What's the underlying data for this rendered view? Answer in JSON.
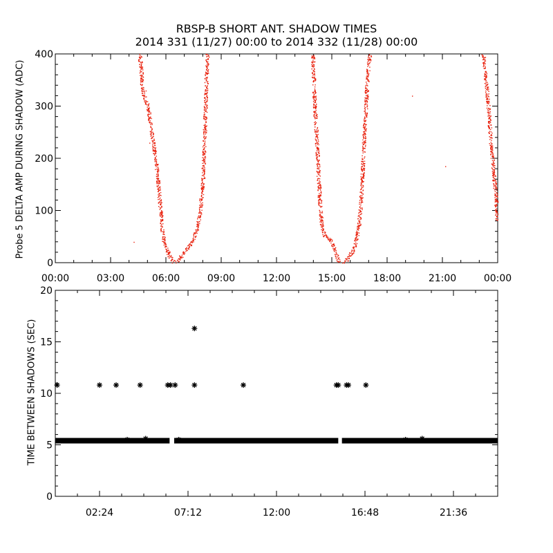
{
  "title": "RBSP-B SHORT ANT. SHADOW TIMES",
  "subtitle": "2014 331 (11/27) 00:00 to 2014 332 (11/28) 00:00",
  "colors": {
    "top_points": "#e8200c",
    "bottom_points": "#000000",
    "axes": "#000000"
  },
  "chart_data": [
    {
      "type": "scatter",
      "title": "RBSP-B SHORT ANT. SHADOW TIMES",
      "ylabel": "Probe 5 DELTA AMP DURING SHADOW (ADC)",
      "xlabel": "",
      "xlim_hours": [
        0,
        24
      ],
      "ylim": [
        0,
        400
      ],
      "xticks": [
        "00:00",
        "03:00",
        "06:00",
        "09:00",
        "12:00",
        "15:00",
        "18:00",
        "21:00",
        "00:00"
      ],
      "yticks": [
        "0",
        "100",
        "200",
        "300",
        "400"
      ],
      "point_color": "#e8200c",
      "segments": [
        {
          "name": "pass1-inbound",
          "points": [
            [
              4.55,
              400
            ],
            [
              4.65,
              370
            ],
            [
              4.7,
              330
            ],
            [
              5.0,
              300
            ],
            [
              5.3,
              230
            ],
            [
              5.5,
              180
            ],
            [
              5.7,
              100
            ],
            [
              5.8,
              60
            ],
            [
              5.9,
              40
            ],
            [
              6.1,
              20
            ],
            [
              6.3,
              5
            ],
            [
              6.45,
              1
            ]
          ]
        },
        {
          "name": "pass1-outbound",
          "points": [
            [
              6.55,
              2
            ],
            [
              6.8,
              12
            ],
            [
              7.0,
              22
            ],
            [
              7.3,
              35
            ],
            [
              7.5,
              50
            ],
            [
              7.65,
              65
            ],
            [
              7.8,
              90
            ],
            [
              7.9,
              120
            ],
            [
              8.0,
              160
            ],
            [
              8.05,
              200
            ],
            [
              8.1,
              260
            ],
            [
              8.15,
              320
            ],
            [
              8.2,
              370
            ],
            [
              8.25,
              400
            ]
          ]
        },
        {
          "name": "pass2-inbound",
          "points": [
            [
              13.95,
              400
            ],
            [
              14.0,
              360
            ],
            [
              14.05,
              310
            ],
            [
              14.15,
              250
            ],
            [
              14.25,
              180
            ],
            [
              14.35,
              110
            ],
            [
              14.45,
              70
            ],
            [
              14.6,
              52
            ],
            [
              14.9,
              45
            ],
            [
              15.1,
              30
            ],
            [
              15.3,
              8
            ],
            [
              15.4,
              1
            ]
          ]
        },
        {
          "name": "pass2-outbound",
          "points": [
            [
              15.6,
              1
            ],
            [
              15.8,
              6
            ],
            [
              16.0,
              15
            ],
            [
              16.2,
              30
            ],
            [
              16.35,
              50
            ],
            [
              16.45,
              70
            ],
            [
              16.55,
              110
            ],
            [
              16.65,
              170
            ],
            [
              16.75,
              250
            ],
            [
              16.85,
              310
            ],
            [
              16.95,
              370
            ],
            [
              17.05,
              400
            ]
          ]
        },
        {
          "name": "pass3-inbound",
          "points": [
            [
              23.2,
              400
            ],
            [
              23.3,
              370
            ],
            [
              23.4,
              330
            ],
            [
              23.5,
              290
            ],
            [
              23.6,
              240
            ],
            [
              23.7,
              200
            ],
            [
              23.8,
              160
            ],
            [
              23.9,
              120
            ],
            [
              23.97,
              80
            ]
          ]
        },
        {
          "name": "isolated",
          "points": [
            [
              4.9,
              330
            ],
            [
              5.1,
              230
            ],
            [
              4.25,
              40
            ],
            [
              19.35,
              320
            ],
            [
              21.15,
              185
            ]
          ]
        }
      ]
    },
    {
      "type": "scatter",
      "ylabel": "TIME BETWEEN SHADOWS (SEC)",
      "xlabel": "",
      "xlim_hours": [
        0,
        24
      ],
      "ylim": [
        0,
        20
      ],
      "xticks": [
        "02:24",
        "07:12",
        "12:00",
        "16:48",
        "21:36"
      ],
      "yticks": [
        "0",
        "5",
        "10",
        "15",
        "20"
      ],
      "marker": "*",
      "point_color": "#000000",
      "baseline": {
        "value": 5.4,
        "ranges_hours": [
          [
            0,
            6.2
          ],
          [
            6.45,
            15.35
          ],
          [
            15.55,
            24
          ]
        ]
      },
      "points": [
        [
          0.1,
          10.8
        ],
        [
          2.4,
          10.8
        ],
        [
          3.3,
          10.8
        ],
        [
          4.6,
          10.8
        ],
        [
          6.1,
          10.8
        ],
        [
          6.25,
          10.8
        ],
        [
          6.5,
          10.8
        ],
        [
          7.55,
          10.8
        ],
        [
          7.55,
          16.3
        ],
        [
          10.2,
          10.8
        ],
        [
          15.25,
          10.8
        ],
        [
          15.35,
          10.8
        ],
        [
          15.8,
          10.8
        ],
        [
          15.9,
          10.8
        ],
        [
          16.85,
          10.8
        ],
        [
          3.9,
          5.5
        ],
        [
          4.9,
          5.6
        ],
        [
          6.7,
          5.5
        ],
        [
          19.0,
          5.5
        ],
        [
          19.9,
          5.6
        ]
      ]
    }
  ]
}
